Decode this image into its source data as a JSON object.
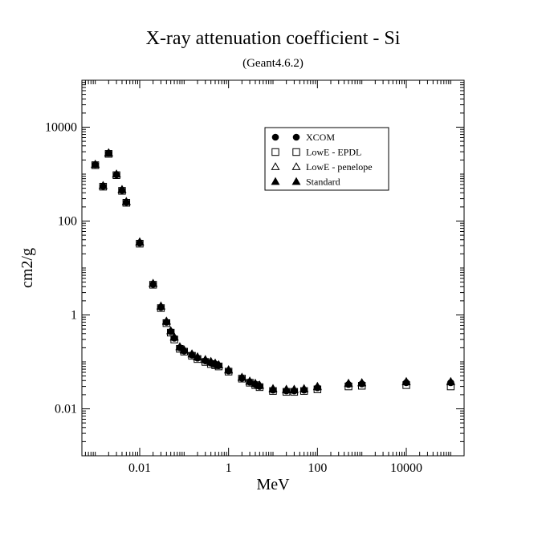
{
  "chart_data": {
    "type": "scatter",
    "title": "X-ray attenuation coefficient - Si",
    "subtitle": "(Geant4.6.2)",
    "xlabel": "MeV",
    "ylabel": "cm2/g",
    "xscale": "log",
    "yscale": "log",
    "xlim": [
      0.0005,
      200000
    ],
    "ylim": [
      0.001,
      100000
    ],
    "x_ticks": [
      0.01,
      1,
      100,
      10000
    ],
    "x_tick_labels": [
      "0.01",
      "1",
      "100",
      "10000"
    ],
    "y_ticks": [
      0.01,
      1,
      100,
      10000
    ],
    "y_tick_labels": [
      "0.01",
      "1",
      "100",
      "10000"
    ],
    "legend_position": "top-right",
    "x": [
      0.001,
      0.0015,
      0.002,
      0.003,
      0.004,
      0.005,
      0.01,
      0.02,
      0.03,
      0.04,
      0.05,
      0.06,
      0.08,
      0.1,
      0.15,
      0.2,
      0.3,
      0.4,
      0.5,
      0.6,
      1,
      2,
      3,
      4,
      5,
      10,
      20,
      30,
      50,
      100,
      500,
      1000,
      10000,
      100000
    ],
    "series": [
      {
        "name": "XCOM",
        "marker": "filled-circle",
        "values": [
          1600,
          550,
          2800,
          970,
          450,
          250,
          34,
          4.5,
          1.45,
          0.7,
          0.44,
          0.32,
          0.2,
          0.17,
          0.14,
          0.12,
          0.105,
          0.095,
          0.09,
          0.083,
          0.064,
          0.045,
          0.037,
          0.033,
          0.03,
          0.025,
          0.024,
          0.024,
          0.025,
          0.028,
          0.033,
          0.034,
          0.036,
          0.036
        ]
      },
      {
        "name": "LowE - EPDL",
        "marker": "open-square",
        "values": [
          1550,
          540,
          2700,
          950,
          440,
          245,
          33,
          4.4,
          1.4,
          0.67,
          0.42,
          0.3,
          0.19,
          0.165,
          0.135,
          0.115,
          0.1,
          0.09,
          0.085,
          0.08,
          0.062,
          0.044,
          0.036,
          0.032,
          0.029,
          0.024,
          0.023,
          0.023,
          0.024,
          0.026,
          0.03,
          0.031,
          0.032,
          0.03
        ]
      },
      {
        "name": "LowE - penelope",
        "marker": "open-triangle",
        "values": [
          1580,
          560,
          2750,
          990,
          460,
          255,
          35,
          4.6,
          1.5,
          0.72,
          0.45,
          0.33,
          0.205,
          0.175,
          0.145,
          0.125,
          0.11,
          0.1,
          0.092,
          0.085,
          0.066,
          0.046,
          0.038,
          0.034,
          0.031,
          0.026,
          0.025,
          0.025,
          0.026,
          0.029,
          0.034,
          0.035,
          0.037,
          0.037
        ]
      },
      {
        "name": "Standard",
        "marker": "filled-triangle",
        "values": [
          1620,
          570,
          2850,
          1000,
          470,
          260,
          36,
          4.7,
          1.55,
          0.74,
          0.46,
          0.34,
          0.21,
          0.18,
          0.148,
          0.128,
          0.112,
          0.102,
          0.094,
          0.087,
          0.068,
          0.047,
          0.039,
          0.035,
          0.032,
          0.027,
          0.026,
          0.026,
          0.027,
          0.03,
          0.035,
          0.036,
          0.038,
          0.038
        ]
      }
    ]
  }
}
